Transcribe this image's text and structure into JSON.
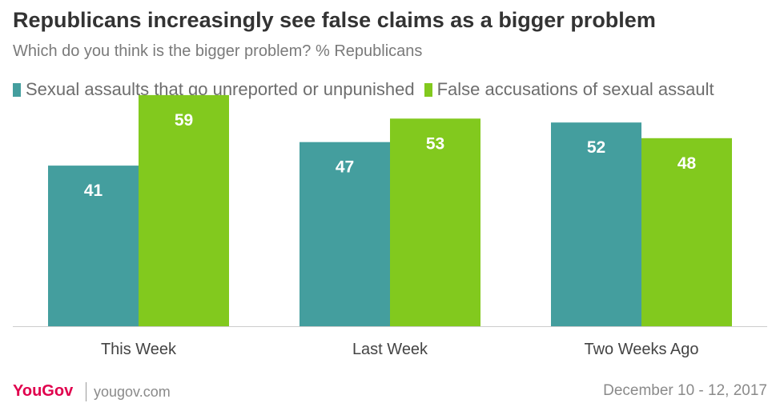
{
  "header": {
    "title": "Republicans increasingly  see false claims as a bigger problem",
    "subtitle": "Which do you think is the bigger problem? % Republicans"
  },
  "colors": {
    "series_1": "#449e9e",
    "series_2": "#82c91e",
    "axis": "#cccccc",
    "tick_text": "#444444",
    "value_text": "#ffffff",
    "logo_red": "#e0004d"
  },
  "chart_data": {
    "type": "bar",
    "categories": [
      "This Week",
      "Last Week",
      "Two Weeks Ago"
    ],
    "series": [
      {
        "name": "Sexual assaults that go unreported or unpunished",
        "values": [
          41,
          47,
          52
        ]
      },
      {
        "name": "False accusations of sexual assault",
        "values": [
          59,
          53,
          48
        ]
      }
    ],
    "ylim": [
      0,
      60
    ],
    "grid": false,
    "legend": "top-left",
    "data_labels": true
  },
  "footer": {
    "logo": "YouGov",
    "site": "yougov.com",
    "date": "December 10 - 12, 2017"
  }
}
